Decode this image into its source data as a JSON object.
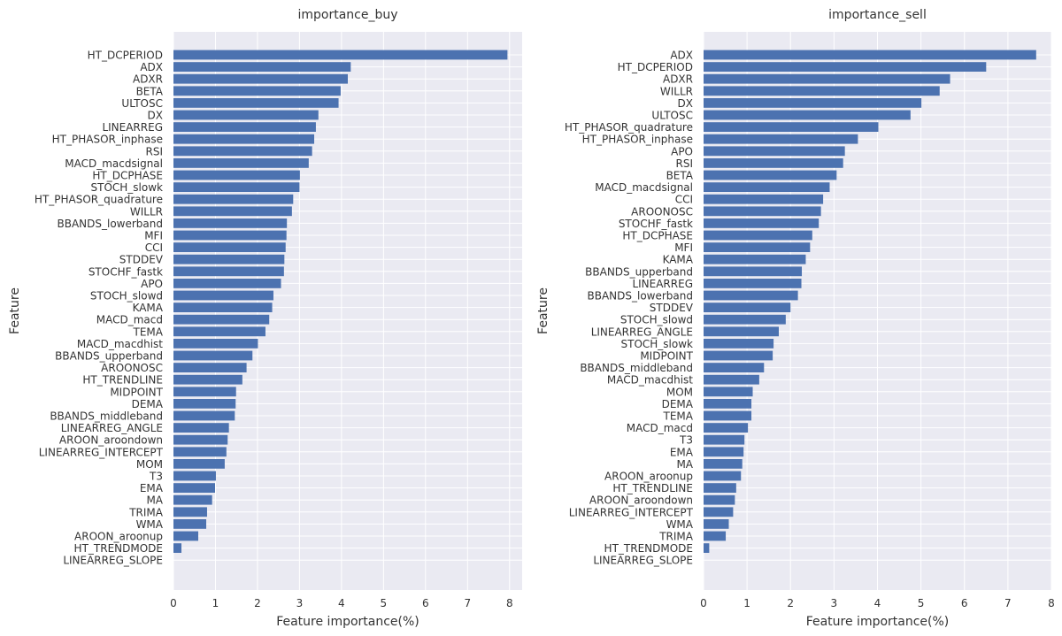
{
  "chart_data": [
    {
      "type": "bar",
      "orientation": "horizontal",
      "title": "importance_buy",
      "xlabel": "Feature importance(%)",
      "ylabel": "Feature",
      "xlim": [
        0,
        8.3
      ],
      "xticks": [
        "0",
        "1",
        "2",
        "3",
        "4",
        "5",
        "6",
        "7",
        "8"
      ],
      "grid": true,
      "categories": [
        "HT_DCPERIOD",
        "ADX",
        "ADXR",
        "BETA",
        "ULTOSC",
        "DX",
        "LINEARREG",
        "HT_PHASOR_inphase",
        "RSI",
        "MACD_macdsignal",
        "HT_DCPHASE",
        "STOCH_slowk",
        "HT_PHASOR_quadrature",
        "WILLR",
        "BBANDS_lowerband",
        "MFI",
        "CCI",
        "STDDEV",
        "STOCHF_fastk",
        "APO",
        "STOCH_slowd",
        "KAMA",
        "MACD_macd",
        "TEMA",
        "MACD_macdhist",
        "BBANDS_upperband",
        "AROONOSC",
        "HT_TRENDLINE",
        "MIDPOINT",
        "DEMA",
        "BBANDS_middleband",
        "LINEARREG_ANGLE",
        "AROON_aroondown",
        "LINEARREG_INTERCEPT",
        "MOM",
        "T3",
        "EMA",
        "MA",
        "TRIMA",
        "WMA",
        "AROON_aroonup",
        "HT_TRENDMODE",
        "LINEARREG_SLOPE"
      ],
      "values": [
        7.95,
        4.22,
        4.15,
        3.98,
        3.93,
        3.45,
        3.39,
        3.35,
        3.3,
        3.22,
        3.01,
        3.0,
        2.85,
        2.82,
        2.7,
        2.69,
        2.67,
        2.64,
        2.63,
        2.56,
        2.38,
        2.35,
        2.28,
        2.19,
        2.01,
        1.88,
        1.74,
        1.64,
        1.49,
        1.48,
        1.46,
        1.32,
        1.29,
        1.26,
        1.22,
        1.01,
        0.99,
        0.92,
        0.8,
        0.78,
        0.59,
        0.19,
        0.0
      ]
    },
    {
      "type": "bar",
      "orientation": "horizontal",
      "title": "importance_sell",
      "xlabel": "Feature importance(%)",
      "ylabel": "Feature",
      "xlim": [
        0,
        8.0
      ],
      "xticks": [
        "0",
        "1",
        "2",
        "3",
        "4",
        "5",
        "6",
        "7",
        "8"
      ],
      "grid": true,
      "categories": [
        "ADX",
        "HT_DCPERIOD",
        "ADXR",
        "WILLR",
        "DX",
        "ULTOSC",
        "HT_PHASOR_quadrature",
        "HT_PHASOR_inphase",
        "APO",
        "RSI",
        "BETA",
        "MACD_macdsignal",
        "CCI",
        "AROONOSC",
        "STOCHF_fastk",
        "HT_DCPHASE",
        "MFI",
        "KAMA",
        "BBANDS_upperband",
        "LINEARREG",
        "BBANDS_lowerband",
        "STDDEV",
        "STOCH_slowd",
        "LINEARREG_ANGLE",
        "STOCH_slowk",
        "MIDPOINT",
        "BBANDS_middleband",
        "MACD_macdhist",
        "MOM",
        "DEMA",
        "TEMA",
        "MACD_macd",
        "T3",
        "EMA",
        "MA",
        "AROON_aroonup",
        "HT_TRENDLINE",
        "AROON_aroondown",
        "LINEARREG_INTERCEPT",
        "WMA",
        "TRIMA",
        "HT_TRENDMODE",
        "LINEARREG_SLOPE"
      ],
      "values": [
        7.65,
        6.5,
        5.67,
        5.43,
        5.01,
        4.76,
        4.02,
        3.55,
        3.25,
        3.21,
        3.06,
        2.9,
        2.75,
        2.7,
        2.65,
        2.5,
        2.45,
        2.35,
        2.26,
        2.25,
        2.17,
        2.0,
        1.89,
        1.73,
        1.61,
        1.59,
        1.39,
        1.28,
        1.13,
        1.1,
        1.1,
        1.02,
        0.94,
        0.92,
        0.89,
        0.86,
        0.75,
        0.72,
        0.68,
        0.58,
        0.51,
        0.13,
        0.0
      ]
    }
  ],
  "colors": {
    "bar": "#4c72b0",
    "plot_bg": "#eaeaf2",
    "grid": "#ffffff",
    "text": "#333333"
  }
}
